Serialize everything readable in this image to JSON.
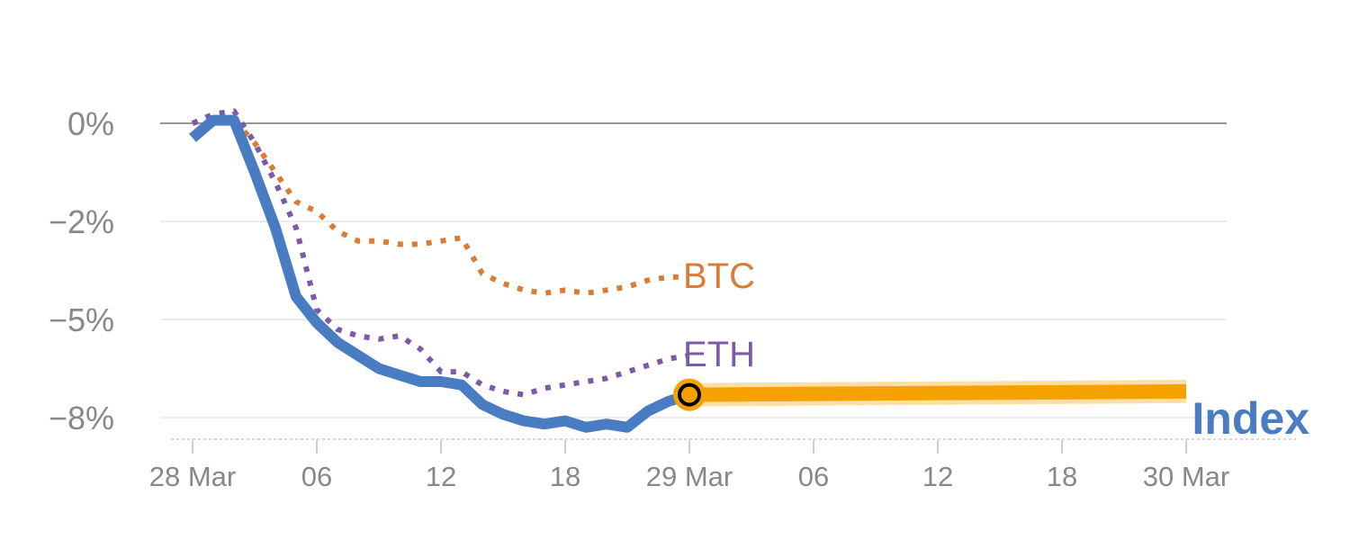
{
  "chart_data": {
    "type": "line",
    "y_unit": "%",
    "ylim": [
      -8.5,
      0.5
    ],
    "y_ticks": [
      {
        "value": 0,
        "label": "0%"
      },
      {
        "value": -2.0,
        "label": "−2%"
      },
      {
        "value": -5.0,
        "label": "−5%"
      },
      {
        "value": -8.0,
        "label": "−8%"
      }
    ],
    "x_range_hours": [
      0,
      48
    ],
    "x_ticks": [
      {
        "hour": 0,
        "label": "28 Mar"
      },
      {
        "hour": 6,
        "label": "06"
      },
      {
        "hour": 12,
        "label": "12"
      },
      {
        "hour": 18,
        "label": "18"
      },
      {
        "hour": 24,
        "label": "29 Mar"
      },
      {
        "hour": 30,
        "label": "06"
      },
      {
        "hour": 36,
        "label": "12"
      },
      {
        "hour": 42,
        "label": "18"
      },
      {
        "hour": 48,
        "label": "30 Mar"
      }
    ],
    "grid": true,
    "series": [
      {
        "name": "BTC",
        "style": "dotted",
        "color": "#d97c36",
        "points": [
          [
            0,
            0.0
          ],
          [
            1,
            0.2
          ],
          [
            2,
            0.1
          ],
          [
            3,
            -0.4
          ],
          [
            4,
            -1.0
          ],
          [
            5,
            -1.6
          ],
          [
            6,
            -1.8
          ],
          [
            7,
            -2.3
          ],
          [
            8,
            -2.6
          ],
          [
            9,
            -2.6
          ],
          [
            10,
            -2.7
          ],
          [
            11,
            -2.7
          ],
          [
            12,
            -2.6
          ],
          [
            13,
            -2.5
          ],
          [
            14,
            -3.6
          ],
          [
            15,
            -3.9
          ],
          [
            16,
            -4.1
          ],
          [
            17,
            -4.2
          ],
          [
            18,
            -4.1
          ],
          [
            19,
            -4.2
          ],
          [
            20,
            -4.1
          ],
          [
            21,
            -4.0
          ],
          [
            22,
            -3.8
          ],
          [
            23,
            -3.7
          ],
          [
            24,
            -3.7
          ]
        ]
      },
      {
        "name": "ETH",
        "style": "dotted",
        "color": "#7b5ba8",
        "points": [
          [
            0,
            0.0
          ],
          [
            1,
            0.3
          ],
          [
            2,
            0.4
          ],
          [
            3,
            -0.4
          ],
          [
            4,
            -1.2
          ],
          [
            5,
            -2.2
          ],
          [
            6,
            -4.7
          ],
          [
            7,
            -5.3
          ],
          [
            8,
            -5.5
          ],
          [
            9,
            -5.6
          ],
          [
            10,
            -5.5
          ],
          [
            11,
            -5.9
          ],
          [
            12,
            -6.6
          ],
          [
            13,
            -6.6
          ],
          [
            14,
            -7.0
          ],
          [
            15,
            -7.2
          ],
          [
            16,
            -7.3
          ],
          [
            17,
            -7.1
          ],
          [
            18,
            -7.0
          ],
          [
            19,
            -6.9
          ],
          [
            20,
            -6.8
          ],
          [
            21,
            -6.6
          ],
          [
            22,
            -6.4
          ],
          [
            23,
            -6.2
          ],
          [
            24,
            -6.1
          ]
        ]
      },
      {
        "name": "Index",
        "style": "solid",
        "color": "#4a7cc2",
        "points": [
          [
            0,
            -0.3
          ],
          [
            1,
            0.1
          ],
          [
            2,
            0.1
          ],
          [
            3,
            -1.0
          ],
          [
            4,
            -2.2
          ],
          [
            5,
            -4.3
          ],
          [
            6,
            -5.1
          ],
          [
            7,
            -5.7
          ],
          [
            8,
            -6.1
          ],
          [
            9,
            -6.5
          ],
          [
            10,
            -6.7
          ],
          [
            11,
            -6.9
          ],
          [
            12,
            -6.9
          ],
          [
            13,
            -7.0
          ],
          [
            14,
            -7.6
          ],
          [
            15,
            -7.9
          ],
          [
            16,
            -8.1
          ],
          [
            17,
            -8.2
          ],
          [
            18,
            -8.1
          ],
          [
            19,
            -8.3
          ],
          [
            20,
            -8.2
          ],
          [
            21,
            -8.3
          ],
          [
            22,
            -7.8
          ],
          [
            23,
            -7.5
          ],
          [
            24,
            -7.3
          ]
        ]
      },
      {
        "name": "",
        "style": "highlight",
        "color": "#f5a200",
        "points": [
          [
            24,
            -7.3
          ],
          [
            48,
            -7.2
          ]
        ]
      }
    ],
    "current_marker": {
      "hour": 24,
      "value": -7.3,
      "fill": "#f5a200"
    }
  }
}
